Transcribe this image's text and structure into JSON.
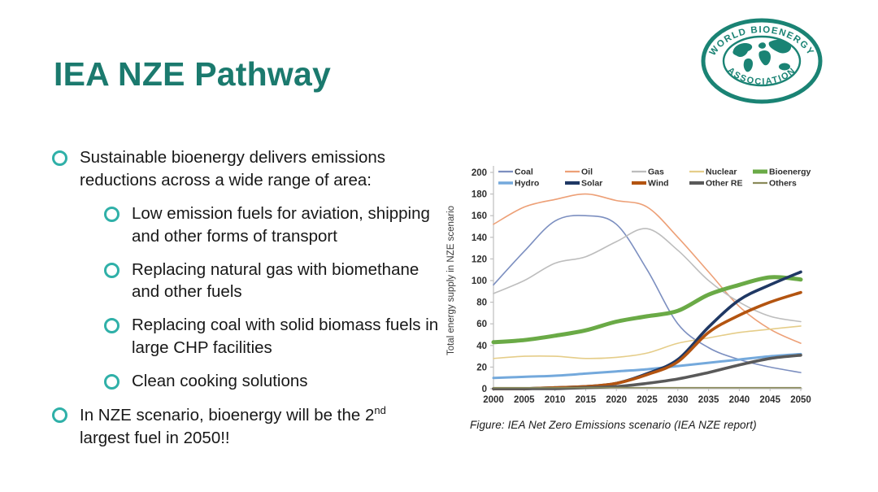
{
  "slide": {
    "title": "IEA NZE Pathway",
    "caption": "Figure: IEA Net Zero Emissions scenario (IEA NZE report)"
  },
  "logo": {
    "top_text": "WORLD BIOENERGY",
    "bottom_text": "ASSOCIATION",
    "color": "#1a8374"
  },
  "bullets": {
    "intro": "Sustainable bioenergy delivers emissions reductions across a wide range of area:",
    "sub_items": [
      "Low emission fuels for aviation, shipping and other forms of transport",
      "Replacing natural gas with biomethane and other fuels",
      "Replacing coal with solid biomass fuels in large CHP facilities",
      "Clean cooking solutions"
    ],
    "conclusion": {
      "pre": "In NZE scenario, bioenergy will be the 2",
      "sup": "nd",
      "post": " largest fuel in 2050!!"
    }
  },
  "colors": {
    "accent_teal": "#1b7a6e",
    "bullet_ring": "#2fb0a8",
    "axis_gray": "#bfbfbf",
    "tick_text": "#2e2e2e"
  },
  "chart_data": {
    "type": "line",
    "title": "",
    "xlabel": "",
    "ylabel": "Total energy supply in NZE scenario",
    "x": [
      2000,
      2005,
      2010,
      2015,
      2020,
      2025,
      2030,
      2035,
      2040,
      2045,
      2050
    ],
    "ylim": [
      0,
      200
    ],
    "ytick_step": 20,
    "grid": false,
    "legend_position": "top-inside",
    "legend_rows": [
      [
        "Coal",
        "Oil",
        "Gas",
        "Nuclear",
        "Bioenergy"
      ],
      [
        "Hydro",
        "Solar",
        "Wind",
        "Other RE",
        "Others"
      ]
    ],
    "series": [
      {
        "name": "Coal",
        "color": "#7c8fc0",
        "width": 1.6,
        "values": [
          96,
          127,
          155,
          160,
          152,
          110,
          60,
          38,
          27,
          20,
          15
        ]
      },
      {
        "name": "Oil",
        "color": "#eda077",
        "width": 1.6,
        "values": [
          152,
          168,
          175,
          180,
          174,
          168,
          140,
          108,
          76,
          55,
          42
        ]
      },
      {
        "name": "Gas",
        "color": "#bdbdbd",
        "width": 1.6,
        "values": [
          88,
          100,
          116,
          122,
          136,
          148,
          128,
          100,
          80,
          67,
          62
        ]
      },
      {
        "name": "Nuclear",
        "color": "#e5cd89",
        "width": 1.6,
        "values": [
          28,
          30,
          30,
          28,
          29,
          33,
          42,
          47,
          52,
          55,
          58
        ]
      },
      {
        "name": "Bioenergy",
        "color": "#6aaa46",
        "width": 5.0,
        "values": [
          43,
          45,
          49,
          54,
          62,
          67,
          72,
          87,
          96,
          103,
          101
        ]
      },
      {
        "name": "Hydro",
        "color": "#74a9dc",
        "width": 3.0,
        "values": [
          10,
          11,
          12,
          14,
          16,
          18,
          21,
          24,
          27,
          30,
          32
        ]
      },
      {
        "name": "Solar",
        "color": "#1f3864",
        "width": 3.6,
        "values": [
          0,
          0,
          1,
          2,
          5,
          14,
          27,
          57,
          82,
          96,
          108
        ]
      },
      {
        "name": "Wind",
        "color": "#b35410",
        "width": 3.6,
        "values": [
          0,
          0,
          1,
          2,
          5,
          13,
          25,
          52,
          68,
          80,
          89
        ]
      },
      {
        "name": "Other RE",
        "color": "#595959",
        "width": 3.6,
        "values": [
          0,
          0,
          0,
          1,
          2,
          5,
          9,
          15,
          22,
          28,
          31
        ]
      },
      {
        "name": "Others",
        "color": "#8a8a5a",
        "width": 1.6,
        "values": [
          1,
          1,
          1,
          1,
          1,
          1,
          1,
          1,
          1,
          1,
          1
        ]
      }
    ]
  }
}
